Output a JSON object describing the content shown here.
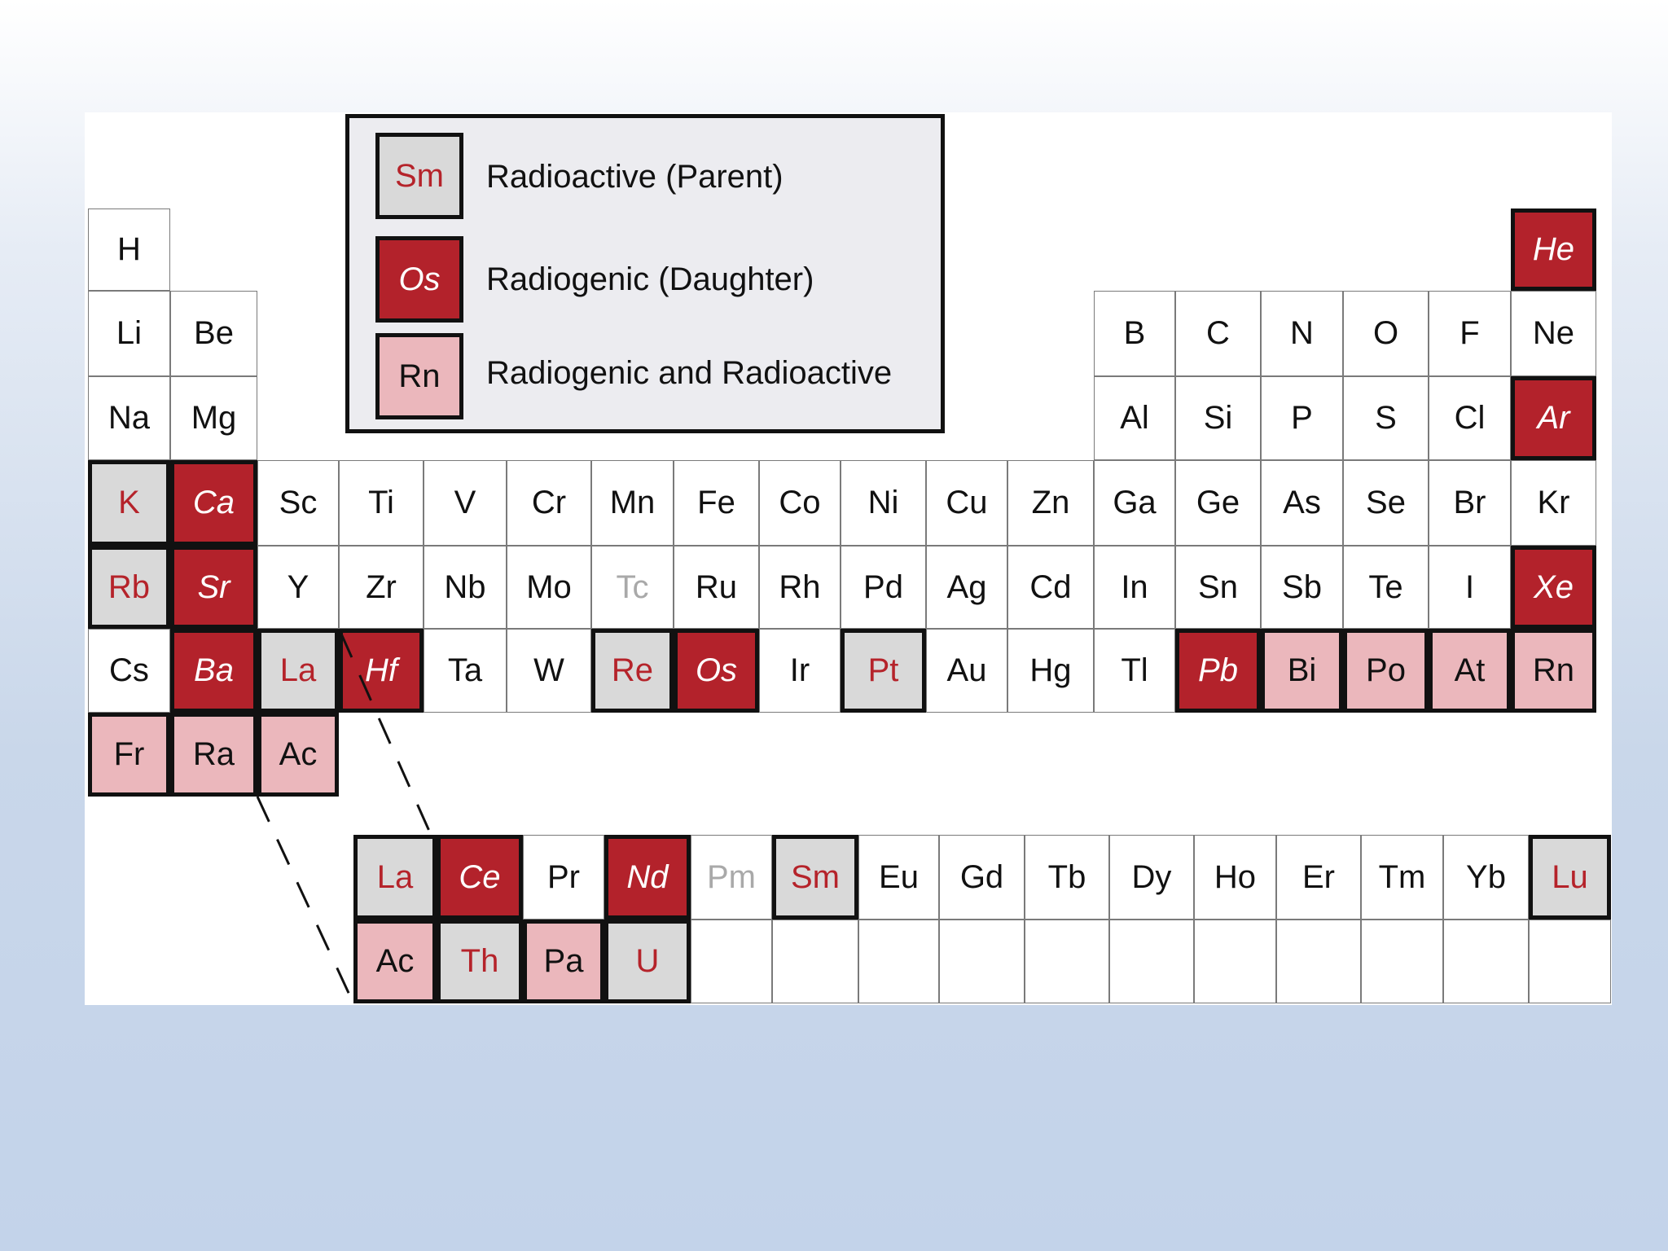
{
  "legend": {
    "items": [
      {
        "symbol": "Sm",
        "category": "parent",
        "label": "Radioactive (Parent)"
      },
      {
        "symbol": "Os",
        "category": "daughter",
        "label": "Radiogenic (Daughter)"
      },
      {
        "symbol": "Rn",
        "category": "both",
        "label": "Radiogenic and Radioactive"
      }
    ]
  },
  "colors": {
    "parent_fill": "#d9d9d9",
    "parent_text": "#b5232a",
    "daughter_fill": "#b3222b",
    "daughter_text": "#ffffff",
    "both_fill": "#ebb7bc",
    "synthetic_text": "#a9a9a9"
  },
  "main_table": {
    "rows": [
      [
        {
          "s": "H"
        },
        {
          "s": "He",
          "c": "daughter"
        }
      ],
      [
        {
          "s": "Li"
        },
        {
          "s": "Be"
        },
        {
          "s": "B"
        },
        {
          "s": "C"
        },
        {
          "s": "N"
        },
        {
          "s": "O"
        },
        {
          "s": "F"
        },
        {
          "s": "Ne"
        }
      ],
      [
        {
          "s": "Na"
        },
        {
          "s": "Mg"
        },
        {
          "s": "Al"
        },
        {
          "s": "Si"
        },
        {
          "s": "P"
        },
        {
          "s": "S"
        },
        {
          "s": "Cl"
        },
        {
          "s": "Ar",
          "c": "daughter"
        }
      ],
      [
        {
          "s": "K",
          "c": "parent"
        },
        {
          "s": "Ca",
          "c": "daughter"
        },
        {
          "s": "Sc"
        },
        {
          "s": "Ti"
        },
        {
          "s": "V"
        },
        {
          "s": "Cr"
        },
        {
          "s": "Mn"
        },
        {
          "s": "Fe"
        },
        {
          "s": "Co"
        },
        {
          "s": "Ni"
        },
        {
          "s": "Cu"
        },
        {
          "s": "Zn"
        },
        {
          "s": "Ga"
        },
        {
          "s": "Ge"
        },
        {
          "s": "As"
        },
        {
          "s": "Se"
        },
        {
          "s": "Br"
        },
        {
          "s": "Kr"
        }
      ],
      [
        {
          "s": "Rb",
          "c": "parent"
        },
        {
          "s": "Sr",
          "c": "daughter"
        },
        {
          "s": "Y"
        },
        {
          "s": "Zr"
        },
        {
          "s": "Nb"
        },
        {
          "s": "Mo"
        },
        {
          "s": "Tc",
          "c": "synthetic"
        },
        {
          "s": "Ru"
        },
        {
          "s": "Rh"
        },
        {
          "s": "Pd"
        },
        {
          "s": "Ag"
        },
        {
          "s": "Cd"
        },
        {
          "s": "In"
        },
        {
          "s": "Sn"
        },
        {
          "s": "Sb"
        },
        {
          "s": "Te"
        },
        {
          "s": "I"
        },
        {
          "s": "Xe",
          "c": "daughter"
        }
      ],
      [
        {
          "s": "Cs"
        },
        {
          "s": "Ba",
          "c": "daughter"
        },
        {
          "s": "La",
          "c": "parent"
        },
        {
          "s": "Hf",
          "c": "daughter"
        },
        {
          "s": "Ta"
        },
        {
          "s": "W"
        },
        {
          "s": "Re",
          "c": "parent"
        },
        {
          "s": "Os",
          "c": "daughter"
        },
        {
          "s": "Ir"
        },
        {
          "s": "Pt",
          "c": "parent"
        },
        {
          "s": "Au"
        },
        {
          "s": "Hg"
        },
        {
          "s": "Tl"
        },
        {
          "s": "Pb",
          "c": "daughter"
        },
        {
          "s": "Bi",
          "c": "both"
        },
        {
          "s": "Po",
          "c": "both"
        },
        {
          "s": "At",
          "c": "both"
        },
        {
          "s": "Rn",
          "c": "both"
        }
      ],
      [
        {
          "s": "Fr",
          "c": "both"
        },
        {
          "s": "Ra",
          "c": "both"
        },
        {
          "s": "Ac",
          "c": "both"
        }
      ]
    ]
  },
  "f_block": {
    "lanthanides": [
      {
        "s": "La",
        "c": "parent"
      },
      {
        "s": "Ce",
        "c": "daughter"
      },
      {
        "s": "Pr"
      },
      {
        "s": "Nd",
        "c": "daughter"
      },
      {
        "s": "Pm",
        "c": "synthetic"
      },
      {
        "s": "Sm",
        "c": "parent"
      },
      {
        "s": "Eu"
      },
      {
        "s": "Gd"
      },
      {
        "s": "Tb"
      },
      {
        "s": "Dy"
      },
      {
        "s": "Ho"
      },
      {
        "s": "Er"
      },
      {
        "s": "Tm"
      },
      {
        "s": "Yb"
      },
      {
        "s": "Lu",
        "c": "parent"
      }
    ],
    "actinides": [
      {
        "s": "Ac",
        "c": "both"
      },
      {
        "s": "Th",
        "c": "parent"
      },
      {
        "s": "Pa",
        "c": "both"
      },
      {
        "s": "U",
        "c": "parent"
      },
      {
        "s": ""
      },
      {
        "s": ""
      },
      {
        "s": ""
      },
      {
        "s": ""
      },
      {
        "s": ""
      },
      {
        "s": ""
      },
      {
        "s": ""
      },
      {
        "s": ""
      },
      {
        "s": ""
      },
      {
        "s": ""
      },
      {
        "s": ""
      }
    ]
  }
}
